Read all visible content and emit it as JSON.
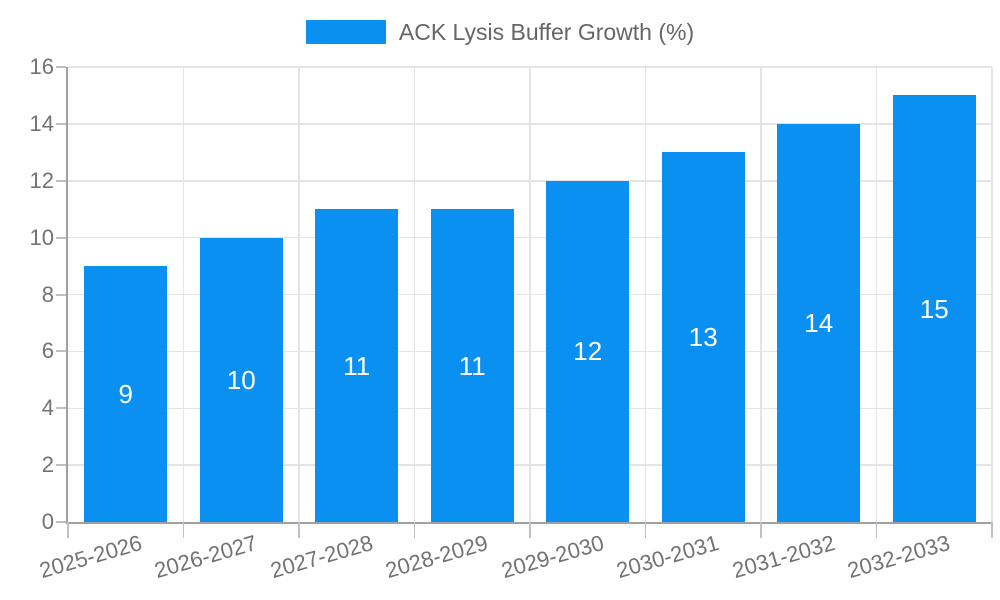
{
  "legend": {
    "label": "ACK Lysis Buffer Growth (%)"
  },
  "chart_data": {
    "type": "bar",
    "title": "",
    "xlabel": "",
    "ylabel": "",
    "categories": [
      "2025-2026",
      "2026-2027",
      "2027-2028",
      "2028-2029",
      "2029-2030",
      "2030-2031",
      "2031-2032",
      "2032-2033"
    ],
    "series": [
      {
        "name": "ACK Lysis Buffer Growth (%)",
        "values": [
          9,
          10,
          11,
          11,
          12,
          13,
          14,
          15
        ]
      }
    ],
    "ylim": [
      0,
      16
    ],
    "ytick_step": 2,
    "ytick_labels": [
      "0",
      "2",
      "4",
      "6",
      "8",
      "10",
      "12",
      "14",
      "16"
    ],
    "grid": true,
    "legend_position": "top-center",
    "value_label_position": "inside-center",
    "x_label_rotation_deg": 16,
    "colors": {
      "bar": "#0a90f0",
      "value_text": "#ffffff",
      "axis_line": "#a0a0a0",
      "grid_line": "#e4e4e4",
      "tick_line": "#c0c0c0",
      "axis_text": "#737373",
      "legend_text": "#666666"
    }
  }
}
